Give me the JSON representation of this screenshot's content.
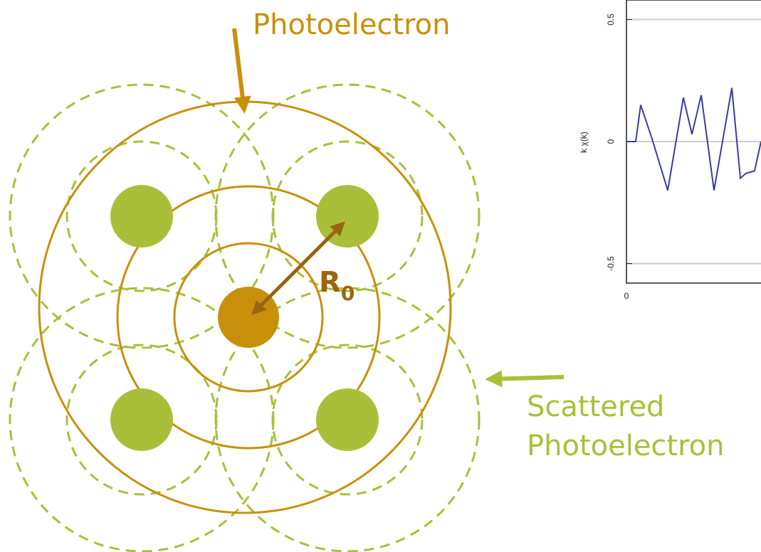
{
  "diagram": {
    "top_label": "Photoelectron",
    "radius_label": "R",
    "radius_subscript": "0",
    "scattered_label": [
      "Scattered",
      "Photoelectron"
    ]
  },
  "chart_data": {
    "type": "line",
    "y_label": "k χ(k)",
    "x": [
      0,
      0.13,
      0.2,
      0.35,
      0.58,
      0.8,
      0.92,
      1.05,
      1.23,
      1.48,
      1.6,
      1.68,
      1.8,
      1.89
    ],
    "values": [
      0,
      0,
      0.15,
      0.02,
      -0.2,
      0.18,
      0.03,
      0.19,
      -0.2,
      0.22,
      -0.15,
      -0.13,
      -0.12,
      0
    ],
    "color": "#3a3aa8",
    "xlim": [
      0,
      1.89
    ],
    "ylim": [
      -0.58,
      0.58
    ],
    "yticks": [
      0.5,
      0,
      -0.5
    ],
    "xticks": [
      0
    ],
    "grid": true
  }
}
